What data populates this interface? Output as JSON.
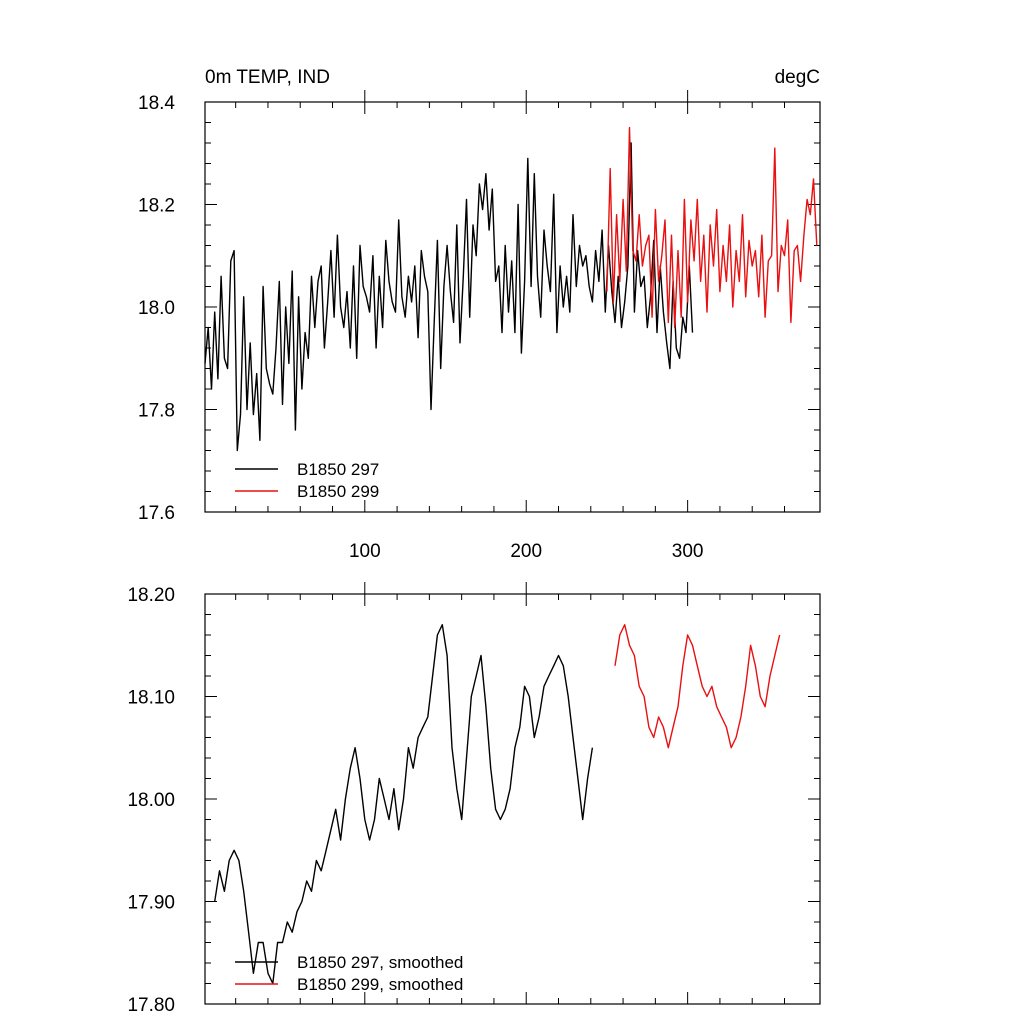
{
  "chart_data": [
    {
      "type": "line",
      "title_left": "0m TEMP, IND",
      "title_right": "degC",
      "xlim": [
        1,
        382
      ],
      "ylim": [
        17.6,
        18.4
      ],
      "x_ticks": [
        100,
        200,
        300
      ],
      "y_ticks": [
        "17.6",
        "17.8",
        "18.0",
        "18.2",
        "18.4"
      ],
      "grid": false,
      "legend_position": "bottom-left",
      "series": [
        {
          "name": "B1850 297",
          "color": "#000000",
          "x_start": 1,
          "x_step": 2,
          "values": [
            17.89,
            17.96,
            17.84,
            17.99,
            17.86,
            18.06,
            17.9,
            17.88,
            18.09,
            18.11,
            17.72,
            17.79,
            18.02,
            17.8,
            17.93,
            17.79,
            17.87,
            17.74,
            18.04,
            17.88,
            17.85,
            17.83,
            17.92,
            18.05,
            17.81,
            18.0,
            17.89,
            18.07,
            17.76,
            18.02,
            17.84,
            17.95,
            17.9,
            18.06,
            17.96,
            18.05,
            18.08,
            17.92,
            18.01,
            18.11,
            17.98,
            18.14,
            18.0,
            17.96,
            18.03,
            17.92,
            18.08,
            17.9,
            18.12,
            18.04,
            18.02,
            17.99,
            18.1,
            17.92,
            18.06,
            17.96,
            18.13,
            18.05,
            18.01,
            17.99,
            18.17,
            18.02,
            17.98,
            18.06,
            18.01,
            18.08,
            17.94,
            18.11,
            18.06,
            18.03,
            17.8,
            17.97,
            18.13,
            17.88,
            18.04,
            18.12,
            18.03,
            17.97,
            18.16,
            17.93,
            18.06,
            18.21,
            17.98,
            18.16,
            18.1,
            18.24,
            18.19,
            18.26,
            18.15,
            18.23,
            18.05,
            18.08,
            17.95,
            18.12,
            17.99,
            18.09,
            17.95,
            18.2,
            17.91,
            18.05,
            18.29,
            18.04,
            18.26,
            18.06,
            17.98,
            18.15,
            18.08,
            18.03,
            18.22,
            17.95,
            18.08,
            18.0,
            18.06,
            17.99,
            18.18,
            18.04,
            18.12,
            18.08,
            18.1,
            18.04,
            18.01,
            18.11,
            18.05,
            18.15,
            17.99,
            18.12,
            18.03,
            17.97,
            18.06,
            17.96,
            18.01,
            18.08,
            18.32,
            17.99,
            18.11,
            18.04,
            18.06,
            17.96,
            18.02,
            18.13,
            17.95,
            18.08,
            17.99,
            17.93,
            17.88,
            18.05,
            17.92,
            17.9,
            17.98,
            17.95,
            18.08,
            17.95
          ]
        },
        {
          "name": "B1850 299",
          "color": "#e81010",
          "x_start": 250,
          "x_step": 2,
          "values": [
            18.03,
            18.27,
            18.01,
            18.18,
            18.05,
            18.21,
            18.07,
            18.35,
            18.11,
            18.09,
            18.18,
            18.08,
            18.12,
            18.14,
            17.98,
            18.19,
            18.05,
            18.1,
            18.17,
            17.97,
            18.14,
            17.96,
            18.11,
            17.98,
            18.21,
            18.01,
            18.17,
            18.09,
            18.21,
            18.05,
            18.14,
            17.99,
            18.16,
            18.08,
            18.19,
            18.03,
            18.12,
            18.05,
            18.16,
            18.0,
            18.11,
            18.05,
            18.18,
            18.02,
            18.13,
            18.08,
            18.11,
            18.02,
            18.14,
            17.98,
            18.09,
            18.1,
            18.31,
            18.03,
            18.12,
            18.1,
            18.17,
            17.97,
            18.11,
            18.12,
            18.05,
            18.14,
            18.21,
            18.18,
            18.25,
            18.12
          ]
        }
      ]
    },
    {
      "type": "line",
      "xlim": [
        1,
        382
      ],
      "ylim": [
        17.8,
        18.2
      ],
      "x_ticks": [
        100,
        200,
        300
      ],
      "y_ticks": [
        "17.80",
        "17.90",
        "18.00",
        "18.10",
        "18.20"
      ],
      "grid": false,
      "legend_position": "bottom-left",
      "series": [
        {
          "name": "B1850 297, smoothed",
          "color": "#000000",
          "x_start": 7,
          "x_step": 3,
          "values": [
            17.9,
            17.93,
            17.91,
            17.94,
            17.95,
            17.94,
            17.91,
            17.87,
            17.83,
            17.86,
            17.86,
            17.83,
            17.82,
            17.86,
            17.86,
            17.88,
            17.87,
            17.89,
            17.9,
            17.92,
            17.91,
            17.94,
            17.93,
            17.95,
            17.97,
            17.99,
            17.96,
            18.0,
            18.03,
            18.05,
            18.02,
            17.98,
            17.96,
            17.98,
            18.02,
            18.0,
            17.98,
            18.01,
            17.97,
            18.0,
            18.05,
            18.03,
            18.06,
            18.07,
            18.08,
            18.12,
            18.16,
            18.17,
            18.14,
            18.05,
            18.01,
            17.98,
            18.04,
            18.1,
            18.12,
            18.14,
            18.09,
            18.03,
            17.99,
            17.98,
            17.99,
            18.01,
            18.05,
            18.07,
            18.11,
            18.1,
            18.06,
            18.08,
            18.11,
            18.12,
            18.13,
            18.14,
            18.13,
            18.1,
            18.06,
            18.02,
            17.98,
            18.02,
            18.05
          ]
        },
        {
          "name": "B1850 299, smoothed",
          "color": "#e81010",
          "x_start": 255,
          "x_step": 3,
          "values": [
            18.13,
            18.16,
            18.17,
            18.15,
            18.14,
            18.11,
            18.1,
            18.07,
            18.06,
            18.08,
            18.07,
            18.05,
            18.07,
            18.09,
            18.13,
            18.16,
            18.15,
            18.13,
            18.11,
            18.1,
            18.11,
            18.09,
            18.08,
            18.07,
            18.05,
            18.06,
            18.08,
            18.11,
            18.15,
            18.13,
            18.1,
            18.09,
            18.12,
            18.14,
            18.16
          ]
        }
      ]
    }
  ]
}
